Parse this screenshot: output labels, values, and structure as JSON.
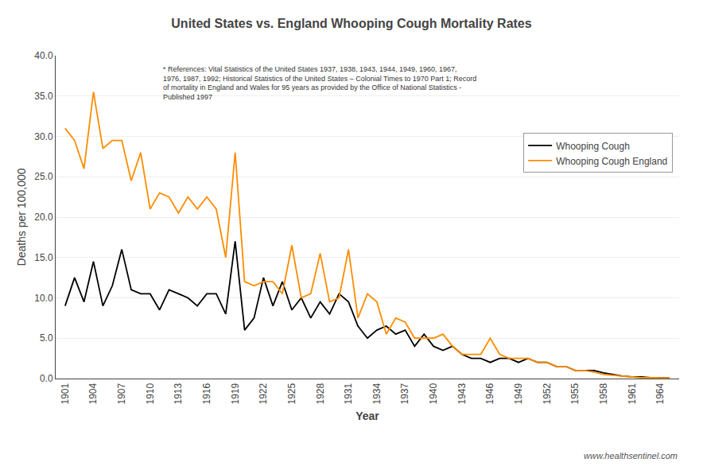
{
  "chart_data": {
    "type": "line",
    "title": "United States vs. England Whooping Cough Mortality Rates",
    "x_label": "Year",
    "y_label": "Deaths per 100,000",
    "annotations": [
      "* References: Vital Statistics of the United States 1937, 1938, 1943, 1944, 1949, 1960, 1967,\n1976, 1987, 1992; Historical Statistics of the United States – Colonial Times to 1970 Part 1; Record\nof mortality in England and Wales for 95 years as provided by the Office of National Statistics -\nPublished 1997",
      "www.healthsentinel.com"
    ],
    "x": [
      1901,
      1902,
      1903,
      1904,
      1905,
      1906,
      1907,
      1908,
      1909,
      1910,
      1911,
      1912,
      1913,
      1914,
      1915,
      1916,
      1917,
      1918,
      1919,
      1920,
      1921,
      1922,
      1923,
      1924,
      1925,
      1926,
      1927,
      1928,
      1929,
      1930,
      1931,
      1932,
      1933,
      1934,
      1935,
      1936,
      1937,
      1938,
      1939,
      1940,
      1941,
      1942,
      1943,
      1944,
      1945,
      1946,
      1947,
      1948,
      1949,
      1950,
      1951,
      1952,
      1953,
      1954,
      1955,
      1956,
      1957,
      1958,
      1959,
      1960,
      1961,
      1962,
      1963,
      1964,
      1965
    ],
    "series": [
      {
        "name": "Whooping Cough",
        "color": "#000000",
        "values": [
          9.0,
          12.5,
          9.5,
          14.5,
          9.0,
          11.5,
          16.0,
          11.0,
          10.5,
          10.5,
          8.5,
          11.0,
          10.5,
          10.0,
          9.0,
          10.5,
          10.5,
          8.0,
          17.0,
          6.0,
          7.5,
          12.5,
          9.0,
          12.0,
          8.5,
          10.0,
          7.5,
          9.5,
          8.0,
          10.5,
          9.5,
          6.5,
          5.0,
          6.0,
          6.5,
          5.5,
          6.0,
          4.0,
          5.5,
          4.0,
          3.5,
          4.0,
          3.0,
          2.5,
          2.5,
          2.0,
          2.5,
          2.5,
          2.0,
          2.5,
          2.0,
          2.0,
          1.5,
          1.5,
          1.0,
          1.0,
          1.0,
          0.7,
          0.5,
          0.3,
          0.2,
          0.2,
          0.1,
          0.1,
          0.05
        ]
      },
      {
        "name": "Whooping Cough England",
        "color": "#FF8C00",
        "values": [
          31.0,
          29.5,
          26.0,
          35.5,
          28.5,
          29.5,
          29.5,
          24.5,
          28.0,
          21.0,
          23.0,
          22.5,
          20.5,
          22.5,
          21.0,
          22.5,
          21.0,
          15.0,
          28.0,
          12.0,
          11.5,
          12.0,
          12.0,
          10.5,
          16.5,
          10.0,
          10.5,
          15.5,
          9.5,
          10.0,
          16.0,
          7.5,
          10.5,
          9.5,
          5.5,
          7.5,
          7.0,
          5.0,
          5.0,
          5.0,
          5.5,
          4.0,
          3.0,
          3.0,
          3.0,
          5.0,
          3.0,
          2.5,
          2.5,
          2.5,
          2.0,
          2.0,
          1.5,
          1.5,
          1.0,
          1.0,
          0.8,
          0.5,
          0.4,
          0.3,
          0.2,
          0.1,
          0.1,
          0.1,
          0.05
        ]
      }
    ],
    "xlim": [
      1900,
      1966
    ],
    "xticks": [
      1901,
      1904,
      1907,
      1910,
      1913,
      1916,
      1919,
      1922,
      1925,
      1928,
      1931,
      1934,
      1937,
      1940,
      1943,
      1946,
      1949,
      1952,
      1955,
      1958,
      1961,
      1964
    ],
    "ylim": [
      0,
      40
    ],
    "yticks": [
      {
        "value": 0,
        "label": "0.0"
      },
      {
        "value": 5,
        "label": "5.0"
      },
      {
        "value": 10,
        "label": "10.0"
      },
      {
        "value": 15,
        "label": "15.0"
      },
      {
        "value": 20,
        "label": "20.0"
      },
      {
        "value": 25,
        "label": "25.0"
      },
      {
        "value": 30,
        "label": "30.0"
      },
      {
        "value": 35,
        "label": "35.0"
      },
      {
        "value": 40,
        "label": "40.0"
      }
    ],
    "grid": true,
    "legend": "upper right"
  }
}
